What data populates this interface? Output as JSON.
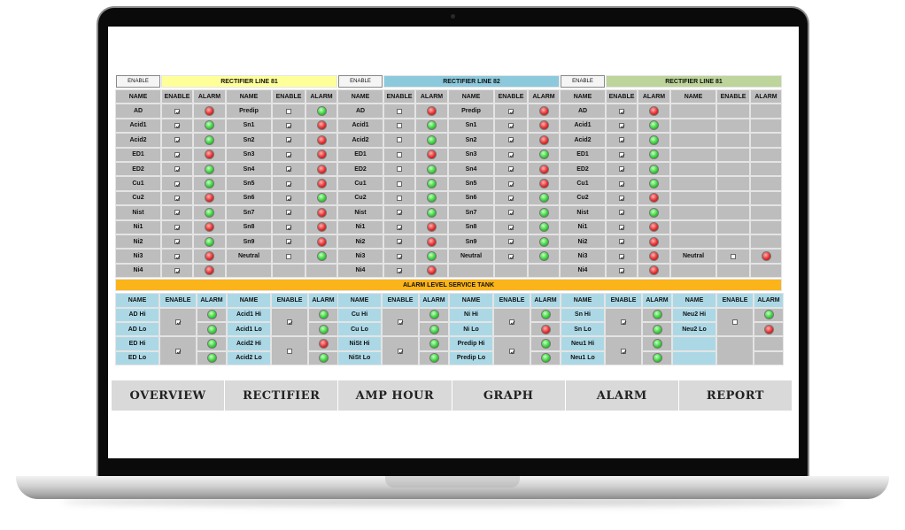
{
  "nav": [
    "OVERVIEW",
    "RECTIFIER",
    "AMP HOUR",
    "GRAPH",
    "ALARM",
    "REPORT"
  ],
  "enable_button": "ENABLE",
  "column_headers": {
    "name": "NAME",
    "enable": "ENABLE",
    "alarm": "ALARM"
  },
  "rectifiers": [
    {
      "title": "RECTIFIER LINE 81",
      "color": "#ffff99",
      "left": [
        {
          "name": "AD",
          "enabled": true,
          "alarm": "red"
        },
        {
          "name": "Acid1",
          "enabled": true,
          "alarm": "green"
        },
        {
          "name": "Acid2",
          "enabled": true,
          "alarm": "green"
        },
        {
          "name": "ED1",
          "enabled": true,
          "alarm": "red"
        },
        {
          "name": "ED2",
          "enabled": true,
          "alarm": "green"
        },
        {
          "name": "Cu1",
          "enabled": true,
          "alarm": "green"
        },
        {
          "name": "Cu2",
          "enabled": true,
          "alarm": "red"
        },
        {
          "name": "Nist",
          "enabled": true,
          "alarm": "green"
        },
        {
          "name": "Ni1",
          "enabled": true,
          "alarm": "red"
        },
        {
          "name": "Ni2",
          "enabled": true,
          "alarm": "green"
        },
        {
          "name": "Ni3",
          "enabled": true,
          "alarm": "red"
        },
        {
          "name": "Ni4",
          "enabled": true,
          "alarm": "red"
        }
      ],
      "right": [
        {
          "name": "Predip",
          "enabled": false,
          "alarm": "green"
        },
        {
          "name": "Sn1",
          "enabled": true,
          "alarm": "red"
        },
        {
          "name": "Sn2",
          "enabled": true,
          "alarm": "red"
        },
        {
          "name": "Sn3",
          "enabled": true,
          "alarm": "red"
        },
        {
          "name": "Sn4",
          "enabled": true,
          "alarm": "red"
        },
        {
          "name": "Sn5",
          "enabled": true,
          "alarm": "red"
        },
        {
          "name": "Sn6",
          "enabled": true,
          "alarm": "green"
        },
        {
          "name": "Sn7",
          "enabled": true,
          "alarm": "red"
        },
        {
          "name": "Sn8",
          "enabled": true,
          "alarm": "red"
        },
        {
          "name": "Sn9",
          "enabled": true,
          "alarm": "red"
        },
        {
          "name": "Neutral",
          "enabled": false,
          "alarm": "green"
        },
        null
      ]
    },
    {
      "title": "RECTIFIER LINE 82",
      "color": "#8cc9dc",
      "left": [
        {
          "name": "AD",
          "enabled": false,
          "alarm": "red"
        },
        {
          "name": "Acid1",
          "enabled": false,
          "alarm": "green"
        },
        {
          "name": "Acid2",
          "enabled": false,
          "alarm": "green"
        },
        {
          "name": "ED1",
          "enabled": false,
          "alarm": "red"
        },
        {
          "name": "ED2",
          "enabled": false,
          "alarm": "green"
        },
        {
          "name": "Cu1",
          "enabled": false,
          "alarm": "green"
        },
        {
          "name": "Cu2",
          "enabled": false,
          "alarm": "green"
        },
        {
          "name": "Nist",
          "enabled": true,
          "alarm": "green"
        },
        {
          "name": "Ni1",
          "enabled": true,
          "alarm": "red"
        },
        {
          "name": "Ni2",
          "enabled": true,
          "alarm": "red"
        },
        {
          "name": "Ni3",
          "enabled": true,
          "alarm": "green"
        },
        {
          "name": "Ni4",
          "enabled": true,
          "alarm": "red"
        }
      ],
      "right": [
        {
          "name": "Predip",
          "enabled": true,
          "alarm": "red"
        },
        {
          "name": "Sn1",
          "enabled": true,
          "alarm": "red"
        },
        {
          "name": "Sn2",
          "enabled": true,
          "alarm": "red"
        },
        {
          "name": "Sn3",
          "enabled": true,
          "alarm": "green"
        },
        {
          "name": "Sn4",
          "enabled": true,
          "alarm": "red"
        },
        {
          "name": "Sn5",
          "enabled": true,
          "alarm": "red"
        },
        {
          "name": "Sn6",
          "enabled": true,
          "alarm": "green"
        },
        {
          "name": "Sn7",
          "enabled": true,
          "alarm": "green"
        },
        {
          "name": "Sn8",
          "enabled": true,
          "alarm": "green"
        },
        {
          "name": "Sn9",
          "enabled": true,
          "alarm": "green"
        },
        {
          "name": "Neutral",
          "enabled": true,
          "alarm": "green"
        },
        null
      ]
    },
    {
      "title": "RECTIFIER LINE 81",
      "color": "#bdd49a",
      "left": [
        {
          "name": "AD",
          "enabled": true,
          "alarm": "red"
        },
        {
          "name": "Acid1",
          "enabled": true,
          "alarm": "green"
        },
        {
          "name": "Acid2",
          "enabled": true,
          "alarm": "green"
        },
        {
          "name": "ED1",
          "enabled": true,
          "alarm": "green"
        },
        {
          "name": "ED2",
          "enabled": true,
          "alarm": "green"
        },
        {
          "name": "Cu1",
          "enabled": true,
          "alarm": "green"
        },
        {
          "name": "Cu2",
          "enabled": true,
          "alarm": "red"
        },
        {
          "name": "Nist",
          "enabled": true,
          "alarm": "green"
        },
        {
          "name": "Ni1",
          "enabled": true,
          "alarm": "red"
        },
        {
          "name": "Ni2",
          "enabled": true,
          "alarm": "red"
        },
        {
          "name": "Ni3",
          "enabled": true,
          "alarm": "red"
        },
        {
          "name": "Ni4",
          "enabled": true,
          "alarm": "red"
        }
      ],
      "right": [
        null,
        null,
        null,
        null,
        null,
        null,
        null,
        null,
        null,
        null,
        {
          "name": "Neutral",
          "enabled": false,
          "alarm": "red"
        },
        null
      ]
    }
  ],
  "alarm_level_title": "ALARM LEVEL SERVICE TANK",
  "tank_groups": [
    {
      "rows": [
        {
          "name": "AD Hi",
          "alarm": "green"
        },
        {
          "name": "AD Lo",
          "alarm": "green"
        },
        {
          "name": "ED Hi",
          "alarm": "green"
        },
        {
          "name": "ED Lo",
          "alarm": "green"
        }
      ],
      "enabled": [
        true,
        true
      ]
    },
    {
      "rows": [
        {
          "name": "Acid1 Hi",
          "alarm": "green"
        },
        {
          "name": "Acid1 Lo",
          "alarm": "green"
        },
        {
          "name": "Acid2 Hi",
          "alarm": "red"
        },
        {
          "name": "Acid2 Lo",
          "alarm": "green"
        }
      ],
      "enabled": [
        true,
        false
      ]
    },
    {
      "rows": [
        {
          "name": "Cu Hi",
          "alarm": "green"
        },
        {
          "name": "Cu Lo",
          "alarm": "green"
        },
        {
          "name": "NiSt Hi",
          "alarm": "green"
        },
        {
          "name": "NiSt Lo",
          "alarm": "green"
        }
      ],
      "enabled": [
        true,
        true
      ]
    },
    {
      "rows": [
        {
          "name": "Ni Hi",
          "alarm": "green"
        },
        {
          "name": "Ni Lo",
          "alarm": "red"
        },
        {
          "name": "Predip Hi",
          "alarm": "green"
        },
        {
          "name": "Predip Lo",
          "alarm": "green"
        }
      ],
      "enabled": [
        true,
        true
      ]
    },
    {
      "rows": [
        {
          "name": "Sn Hi",
          "alarm": "green"
        },
        {
          "name": "Sn Lo",
          "alarm": "green"
        },
        {
          "name": "Neu1 Hi",
          "alarm": "green"
        },
        {
          "name": "Neu1 Lo",
          "alarm": "green"
        }
      ],
      "enabled": [
        true,
        true
      ]
    },
    {
      "rows": [
        {
          "name": "Neu2 Hi",
          "alarm": "green"
        },
        {
          "name": "Neu2 Lo",
          "alarm": "red"
        },
        null,
        null
      ],
      "enabled": [
        false,
        null
      ]
    }
  ]
}
